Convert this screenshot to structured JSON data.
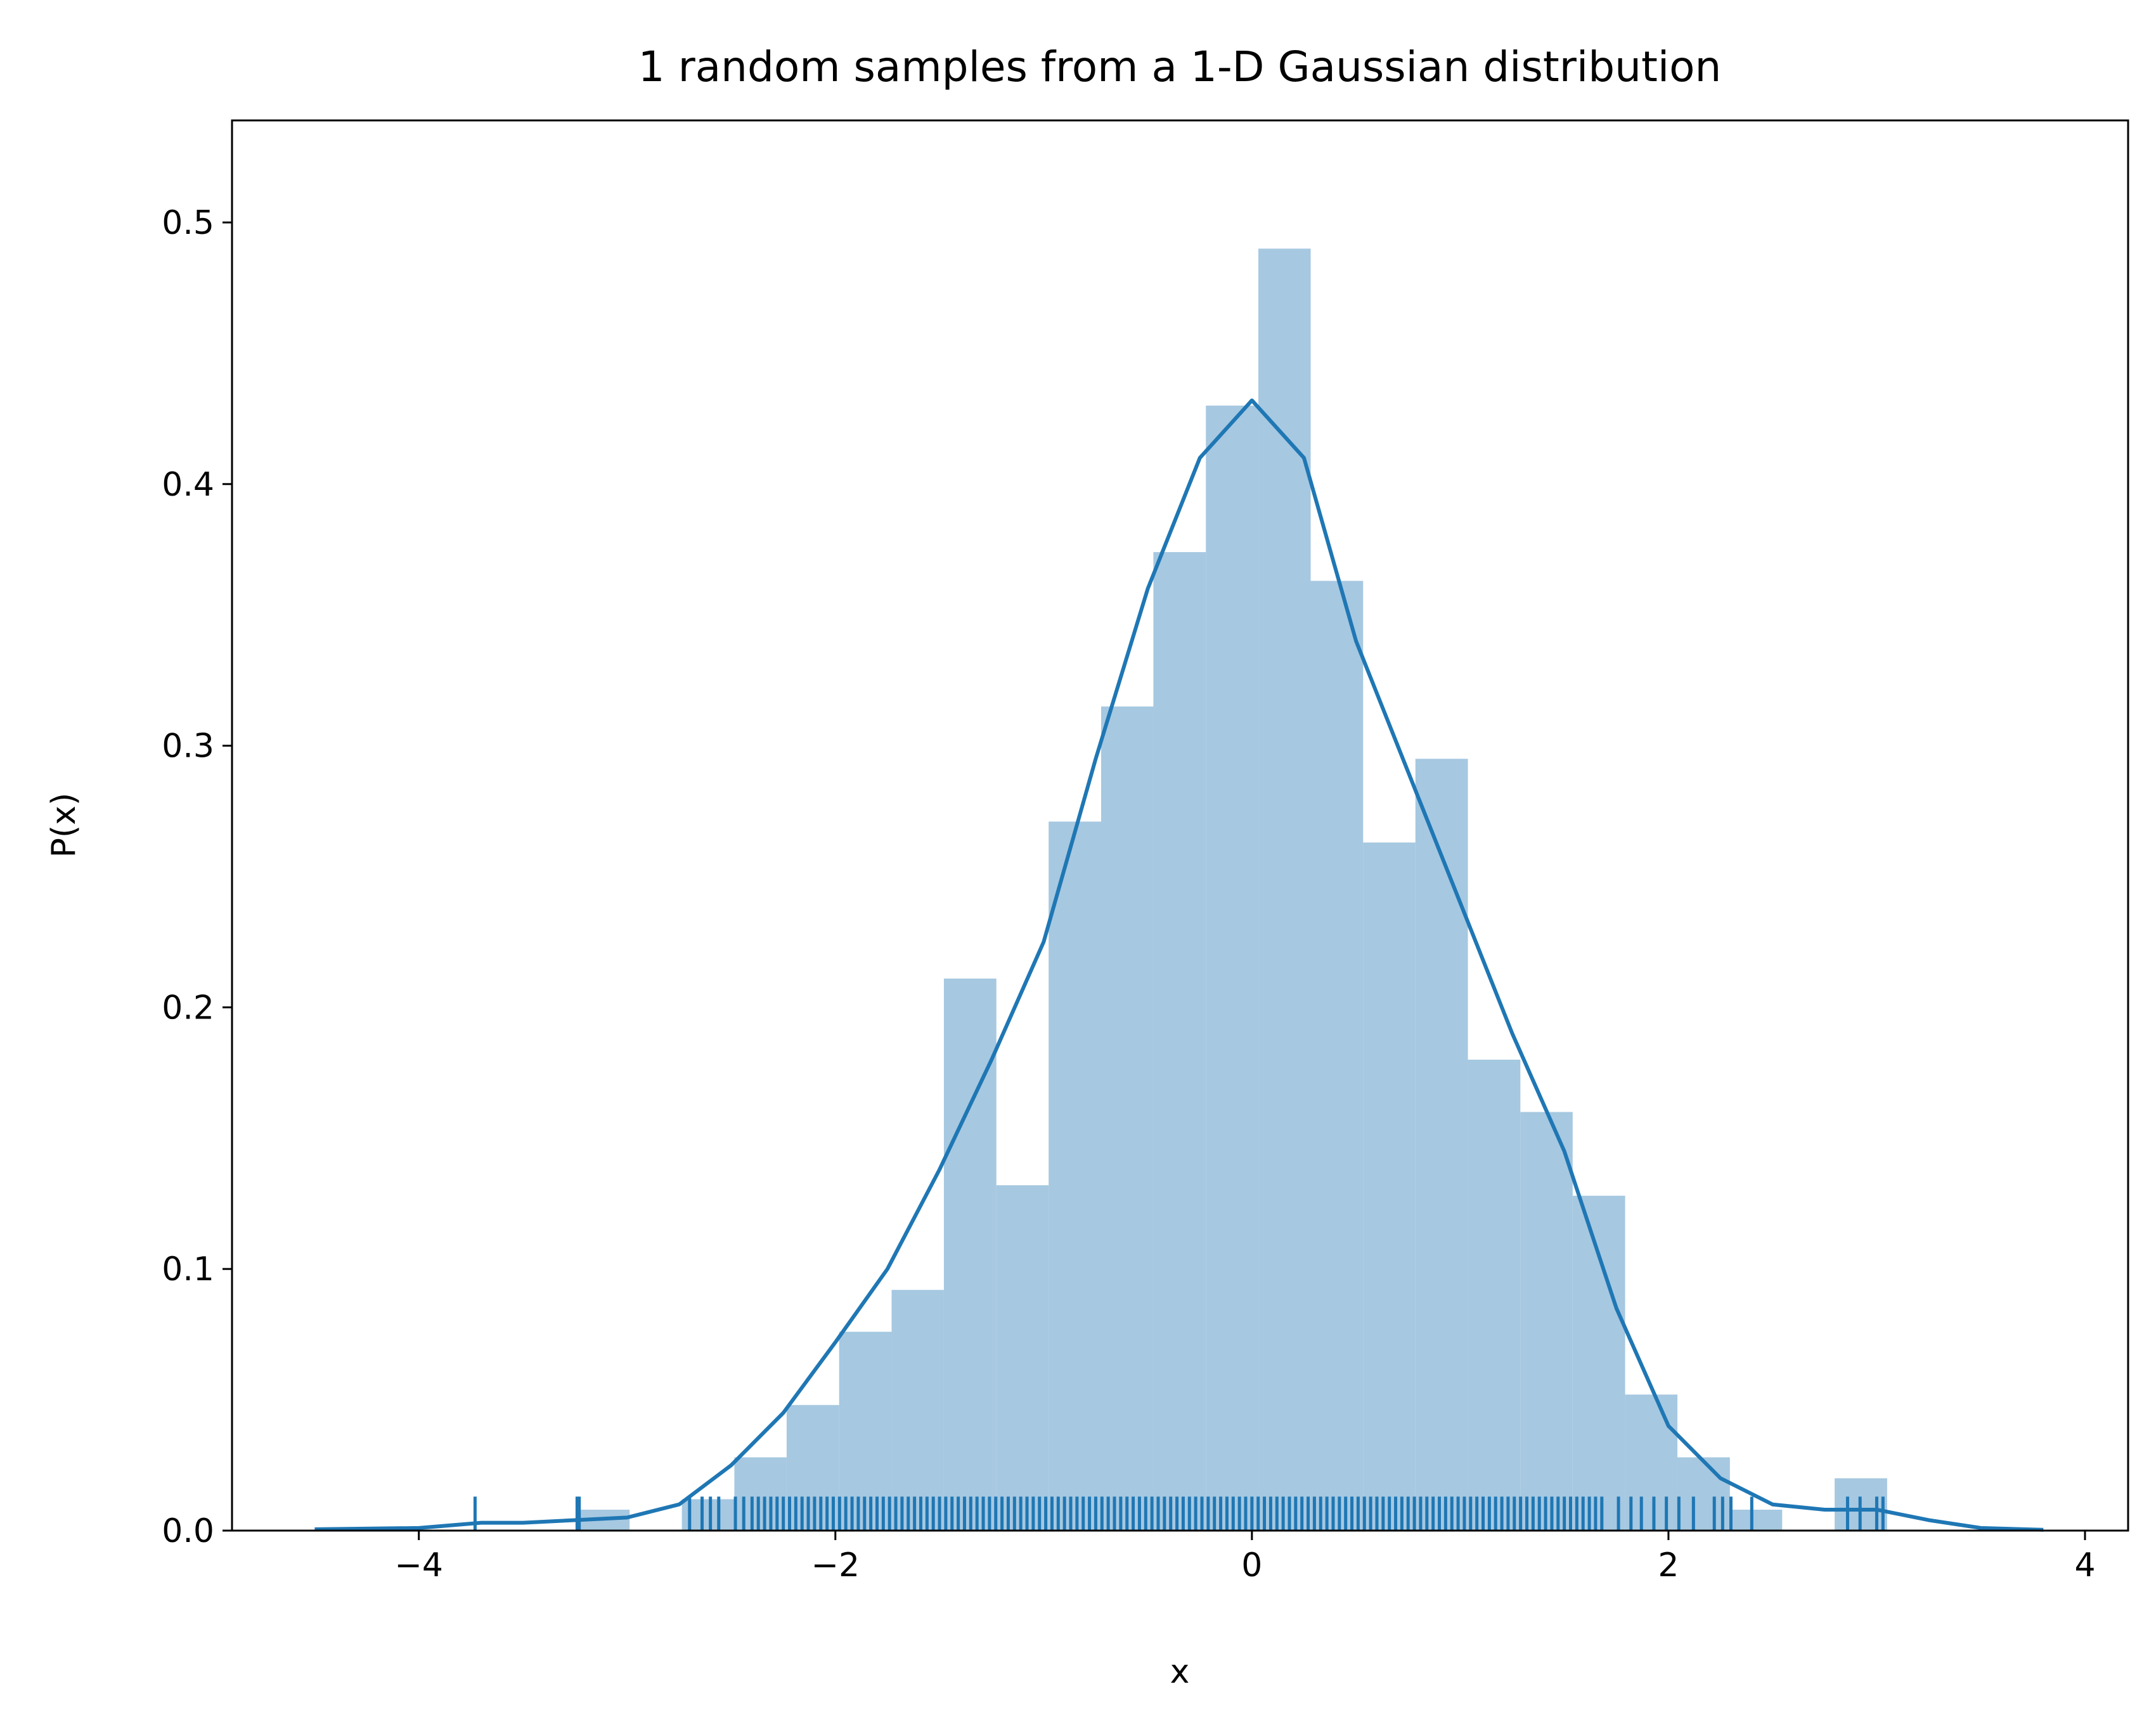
{
  "chart_data": {
    "type": "histogram",
    "title": "1 random samples from a 1-D Gaussian distribution",
    "xlabel": "x",
    "ylabel": "P(x)",
    "bins": [
      -3.24,
      -2.988,
      -2.737,
      -2.485,
      -2.234,
      -1.982,
      -1.73,
      -1.479,
      -1.227,
      -0.976,
      -0.724,
      -0.473,
      -0.221,
      0.031,
      0.282,
      0.534,
      0.785,
      1.037,
      1.289,
      1.54,
      1.792,
      2.043,
      2.295,
      2.546,
      2.798,
      3.05
    ],
    "values": [
      0.008,
      0,
      0.012,
      0.028,
      0.048,
      0.076,
      0.092,
      0.211,
      0.132,
      0.271,
      0.315,
      0.374,
      0.43,
      0.49,
      0.363,
      0.263,
      0.295,
      0.18,
      0.16,
      0.128,
      0.052,
      0.028,
      0.008,
      0,
      0.02
    ],
    "color": "#a6c8e1",
    "kde": {
      "color": "#1f77b4",
      "x": [
        -4.5,
        -4.0,
        -3.7,
        -3.5,
        -3.25,
        -3.0,
        -2.75,
        -2.5,
        -2.25,
        -2.0,
        -1.75,
        -1.5,
        -1.25,
        -1.0,
        -0.75,
        -0.5,
        -0.25,
        0,
        0.25,
        0.5,
        0.75,
        1.0,
        1.25,
        1.5,
        1.75,
        2.0,
        2.25,
        2.5,
        2.75,
        3.0,
        3.25,
        3.5,
        3.8
      ],
      "y": [
        0.0005,
        0.001,
        0.003,
        0.003,
        0.004,
        0.005,
        0.01,
        0.025,
        0.045,
        0.072,
        0.1,
        0.138,
        0.18,
        0.225,
        0.295,
        0.36,
        0.41,
        0.432,
        0.41,
        0.34,
        0.29,
        0.24,
        0.19,
        0.145,
        0.085,
        0.04,
        0.02,
        0.01,
        0.008,
        0.008,
        0.004,
        0.001,
        0.0003
      ]
    },
    "rug": {
      "color": "#1f77b4",
      "height": 0.013,
      "values": [
        -3.73,
        -3.24,
        -3.23,
        -2.7,
        -2.64,
        -2.6,
        -2.56,
        -2.48,
        -2.44,
        -2.4,
        -2.37,
        -2.34,
        -2.31,
        -2.28,
        -2.25,
        -2.22,
        -2.19,
        -2.16,
        -2.13,
        -2.1,
        -2.07,
        -2.04,
        -2.01,
        -1.98,
        -1.95,
        -1.92,
        -1.89,
        -1.86,
        -1.83,
        -1.8,
        -1.77,
        -1.74,
        -1.71,
        -1.68,
        -1.65,
        -1.62,
        -1.59,
        -1.56,
        -1.53,
        -1.5,
        -1.47,
        -1.44,
        -1.41,
        -1.38,
        -1.35,
        -1.32,
        -1.29,
        -1.26,
        -1.23,
        -1.2,
        -1.17,
        -1.14,
        -1.11,
        -1.08,
        -1.05,
        -1.02,
        -0.99,
        -0.96,
        -0.93,
        -0.9,
        -0.87,
        -0.84,
        -0.81,
        -0.78,
        -0.75,
        -0.72,
        -0.69,
        -0.66,
        -0.63,
        -0.6,
        -0.57,
        -0.54,
        -0.51,
        -0.48,
        -0.45,
        -0.42,
        -0.39,
        -0.36,
        -0.33,
        -0.3,
        -0.27,
        -0.24,
        -0.21,
        -0.18,
        -0.15,
        -0.12,
        -0.09,
        -0.06,
        -0.03,
        0,
        0.03,
        0.06,
        0.09,
        0.12,
        0.15,
        0.18,
        0.21,
        0.24,
        0.27,
        0.3,
        0.33,
        0.36,
        0.39,
        0.42,
        0.45,
        0.48,
        0.51,
        0.54,
        0.57,
        0.6,
        0.63,
        0.66,
        0.69,
        0.72,
        0.75,
        0.78,
        0.81,
        0.84,
        0.87,
        0.9,
        0.93,
        0.96,
        0.99,
        1.02,
        1.05,
        1.08,
        1.11,
        1.14,
        1.17,
        1.2,
        1.23,
        1.26,
        1.29,
        1.32,
        1.35,
        1.38,
        1.41,
        1.44,
        1.47,
        1.5,
        1.53,
        1.56,
        1.59,
        1.62,
        1.65,
        1.68,
        1.76,
        1.82,
        1.87,
        1.93,
        1.99,
        2.05,
        2.12,
        2.22,
        2.26,
        2.3,
        2.4,
        2.86,
        2.92,
        3.0,
        3.03
      ]
    },
    "xlim": [
      -4.897,
      4.207
    ],
    "ylim": [
      0,
      0.539
    ],
    "xticks": [
      {
        "value": -4,
        "label": "−4"
      },
      {
        "value": -2,
        "label": "−2"
      },
      0,
      2,
      4
    ],
    "yticks": [
      {
        "value": 0,
        "label": "0.0"
      },
      0.1,
      0.2,
      0.3,
      0.4,
      0.5
    ]
  }
}
